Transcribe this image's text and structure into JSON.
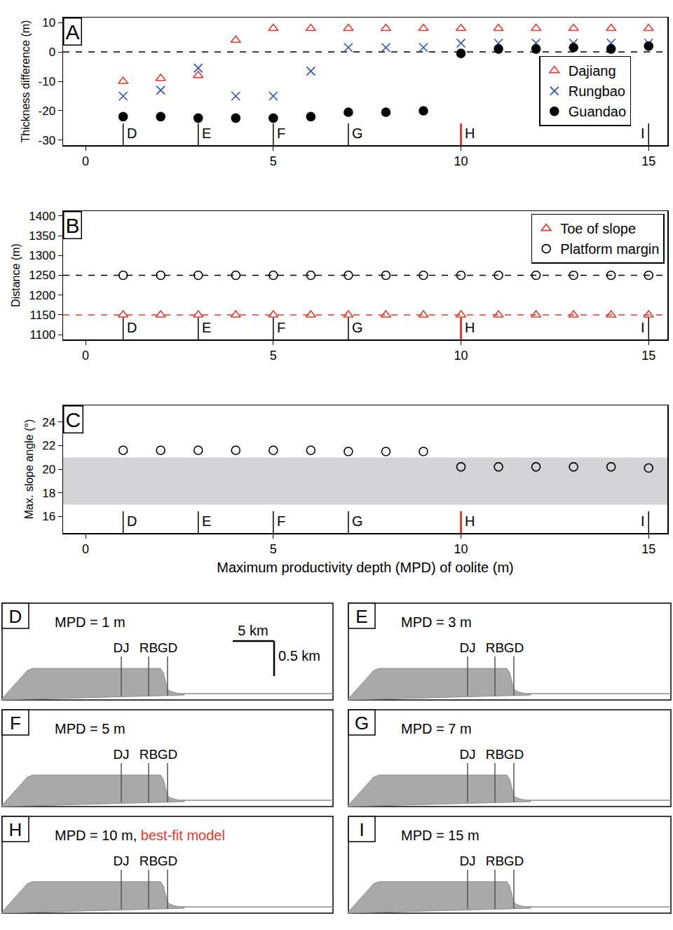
{
  "chart_data": [
    {
      "type": "scatter",
      "panel": "A",
      "ylabel": "Thickness difference (m)",
      "xlim": [
        -0.6,
        15.5
      ],
      "xticks": [
        0,
        5,
        10,
        15
      ],
      "ylim": [
        -31.7,
        11.7
      ],
      "yticks": [
        -30,
        -20,
        -10,
        0,
        10
      ],
      "legend": "right",
      "hlines": [
        {
          "y": 0,
          "color": "#000000"
        }
      ],
      "markers": [
        {
          "x": 1,
          "label": "D"
        },
        {
          "x": 3,
          "label": "E"
        },
        {
          "x": 5,
          "label": "F"
        },
        {
          "x": 7,
          "label": "G"
        },
        {
          "x": 10,
          "label": "H",
          "color": "#e8392b"
        },
        {
          "x": 15,
          "label": "I"
        }
      ],
      "x": [
        1,
        2,
        3,
        4,
        5,
        6,
        7,
        8,
        9,
        10,
        11,
        12,
        13,
        14,
        15
      ],
      "series": [
        {
          "name": "Dajiang",
          "color": "#e8392b",
          "marker": "triangle-open",
          "values": [
            -10,
            -9,
            -8,
            4,
            8,
            8,
            8,
            8,
            8,
            8,
            8,
            8,
            8,
            8,
            8
          ]
        },
        {
          "name": "Rungbao",
          "color": "#2a52be",
          "marker": "x",
          "values": [
            -15,
            -13,
            -5.5,
            -15,
            -15,
            -6.5,
            1.5,
            1.5,
            1.5,
            3,
            3,
            3,
            3,
            3,
            3
          ]
        },
        {
          "name": "Guandao",
          "color": "#000000",
          "marker": "circle",
          "values": [
            -22,
            -22,
            -22.5,
            -22.5,
            -22.5,
            -22,
            -20.5,
            -20.5,
            -20,
            -0.5,
            1,
            1,
            1.5,
            1,
            2
          ]
        }
      ]
    },
    {
      "type": "scatter",
      "panel": "B",
      "ylabel": "Distance (m)",
      "xlim": [
        -0.6,
        15.5
      ],
      "xticks": [
        0,
        5,
        10,
        15
      ],
      "ylim": [
        1088,
        1412
      ],
      "yticks": [
        1100,
        1150,
        1200,
        1250,
        1300,
        1350,
        1400
      ],
      "legend": "top right",
      "hlines": [
        {
          "y": 1250,
          "color": "#000000"
        },
        {
          "y": 1150,
          "color": "#e8392b"
        }
      ],
      "markers": [
        {
          "x": 1,
          "label": "D"
        },
        {
          "x": 3,
          "label": "E"
        },
        {
          "x": 5,
          "label": "F"
        },
        {
          "x": 7,
          "label": "G"
        },
        {
          "x": 10,
          "label": "H",
          "color": "#e8392b"
        },
        {
          "x": 15,
          "label": "I"
        }
      ],
      "x": [
        1,
        2,
        3,
        4,
        5,
        6,
        7,
        8,
        9,
        10,
        11,
        12,
        13,
        14,
        15
      ],
      "series": [
        {
          "name": "Toe of slope",
          "color": "#e8392b",
          "marker": "triangle-open",
          "values": [
            1150,
            1150,
            1150,
            1150,
            1150,
            1150,
            1150,
            1150,
            1150,
            1150,
            1150,
            1150,
            1150,
            1150,
            1150
          ]
        },
        {
          "name": "Platform margin",
          "color": "#000000",
          "marker": "circle-open",
          "values": [
            1250,
            1250,
            1250,
            1250,
            1250,
            1250,
            1250,
            1250,
            1250,
            1250,
            1250,
            1250,
            1250,
            1250,
            1250
          ]
        }
      ]
    },
    {
      "type": "scatter",
      "panel": "C",
      "ylabel": "Max. slope angle (°)",
      "xlabel": "Maximum productivity depth (MPD) of oolite (m)",
      "xlim": [
        -0.6,
        15.5
      ],
      "xticks": [
        0,
        5,
        10,
        15
      ],
      "ylim": [
        14.6,
        25.4
      ],
      "yticks": [
        16,
        18,
        20,
        22,
        24
      ],
      "band": [
        17,
        21
      ],
      "markers": [
        {
          "x": 1,
          "label": "D"
        },
        {
          "x": 3,
          "label": "E"
        },
        {
          "x": 5,
          "label": "F"
        },
        {
          "x": 7,
          "label": "G"
        },
        {
          "x": 10,
          "label": "H",
          "color": "#e8392b"
        },
        {
          "x": 15,
          "label": "I"
        }
      ],
      "x": [
        1,
        2,
        3,
        4,
        5,
        6,
        7,
        8,
        9,
        10,
        11,
        12,
        13,
        14,
        15
      ],
      "series": [
        {
          "color": "#000000",
          "marker": "circle-open",
          "values": [
            21.6,
            21.6,
            21.6,
            21.6,
            21.6,
            21.6,
            21.5,
            21.5,
            21.5,
            20.2,
            20.2,
            20.2,
            20.2,
            20.2,
            20.1
          ]
        }
      ]
    }
  ],
  "profiles": {
    "scale": {
      "horizontal": "5 km",
      "vertical": "0.5 km"
    },
    "panels": [
      {
        "letter": "D",
        "title": "MPD = 1 m",
        "wells": [
          "DJ",
          "RB",
          "GD"
        ]
      },
      {
        "letter": "E",
        "title": "MPD = 3 m",
        "wells": [
          "DJ",
          "RB",
          "GD"
        ]
      },
      {
        "letter": "F",
        "title": "MPD = 5 m",
        "wells": [
          "DJ",
          "RB",
          "GD"
        ]
      },
      {
        "letter": "G",
        "title": "MPD = 7 m",
        "wells": [
          "DJ",
          "RB",
          "GD"
        ]
      },
      {
        "letter": "H",
        "title": "MPD = 10 m,",
        "highlight": "best-fit model",
        "highlight_color": "#e8392b",
        "wells": [
          "DJ",
          "RB",
          "GD"
        ]
      },
      {
        "letter": "I",
        "title": "MPD = 15 m",
        "wells": [
          "DJ",
          "RB",
          "GD"
        ]
      }
    ]
  }
}
